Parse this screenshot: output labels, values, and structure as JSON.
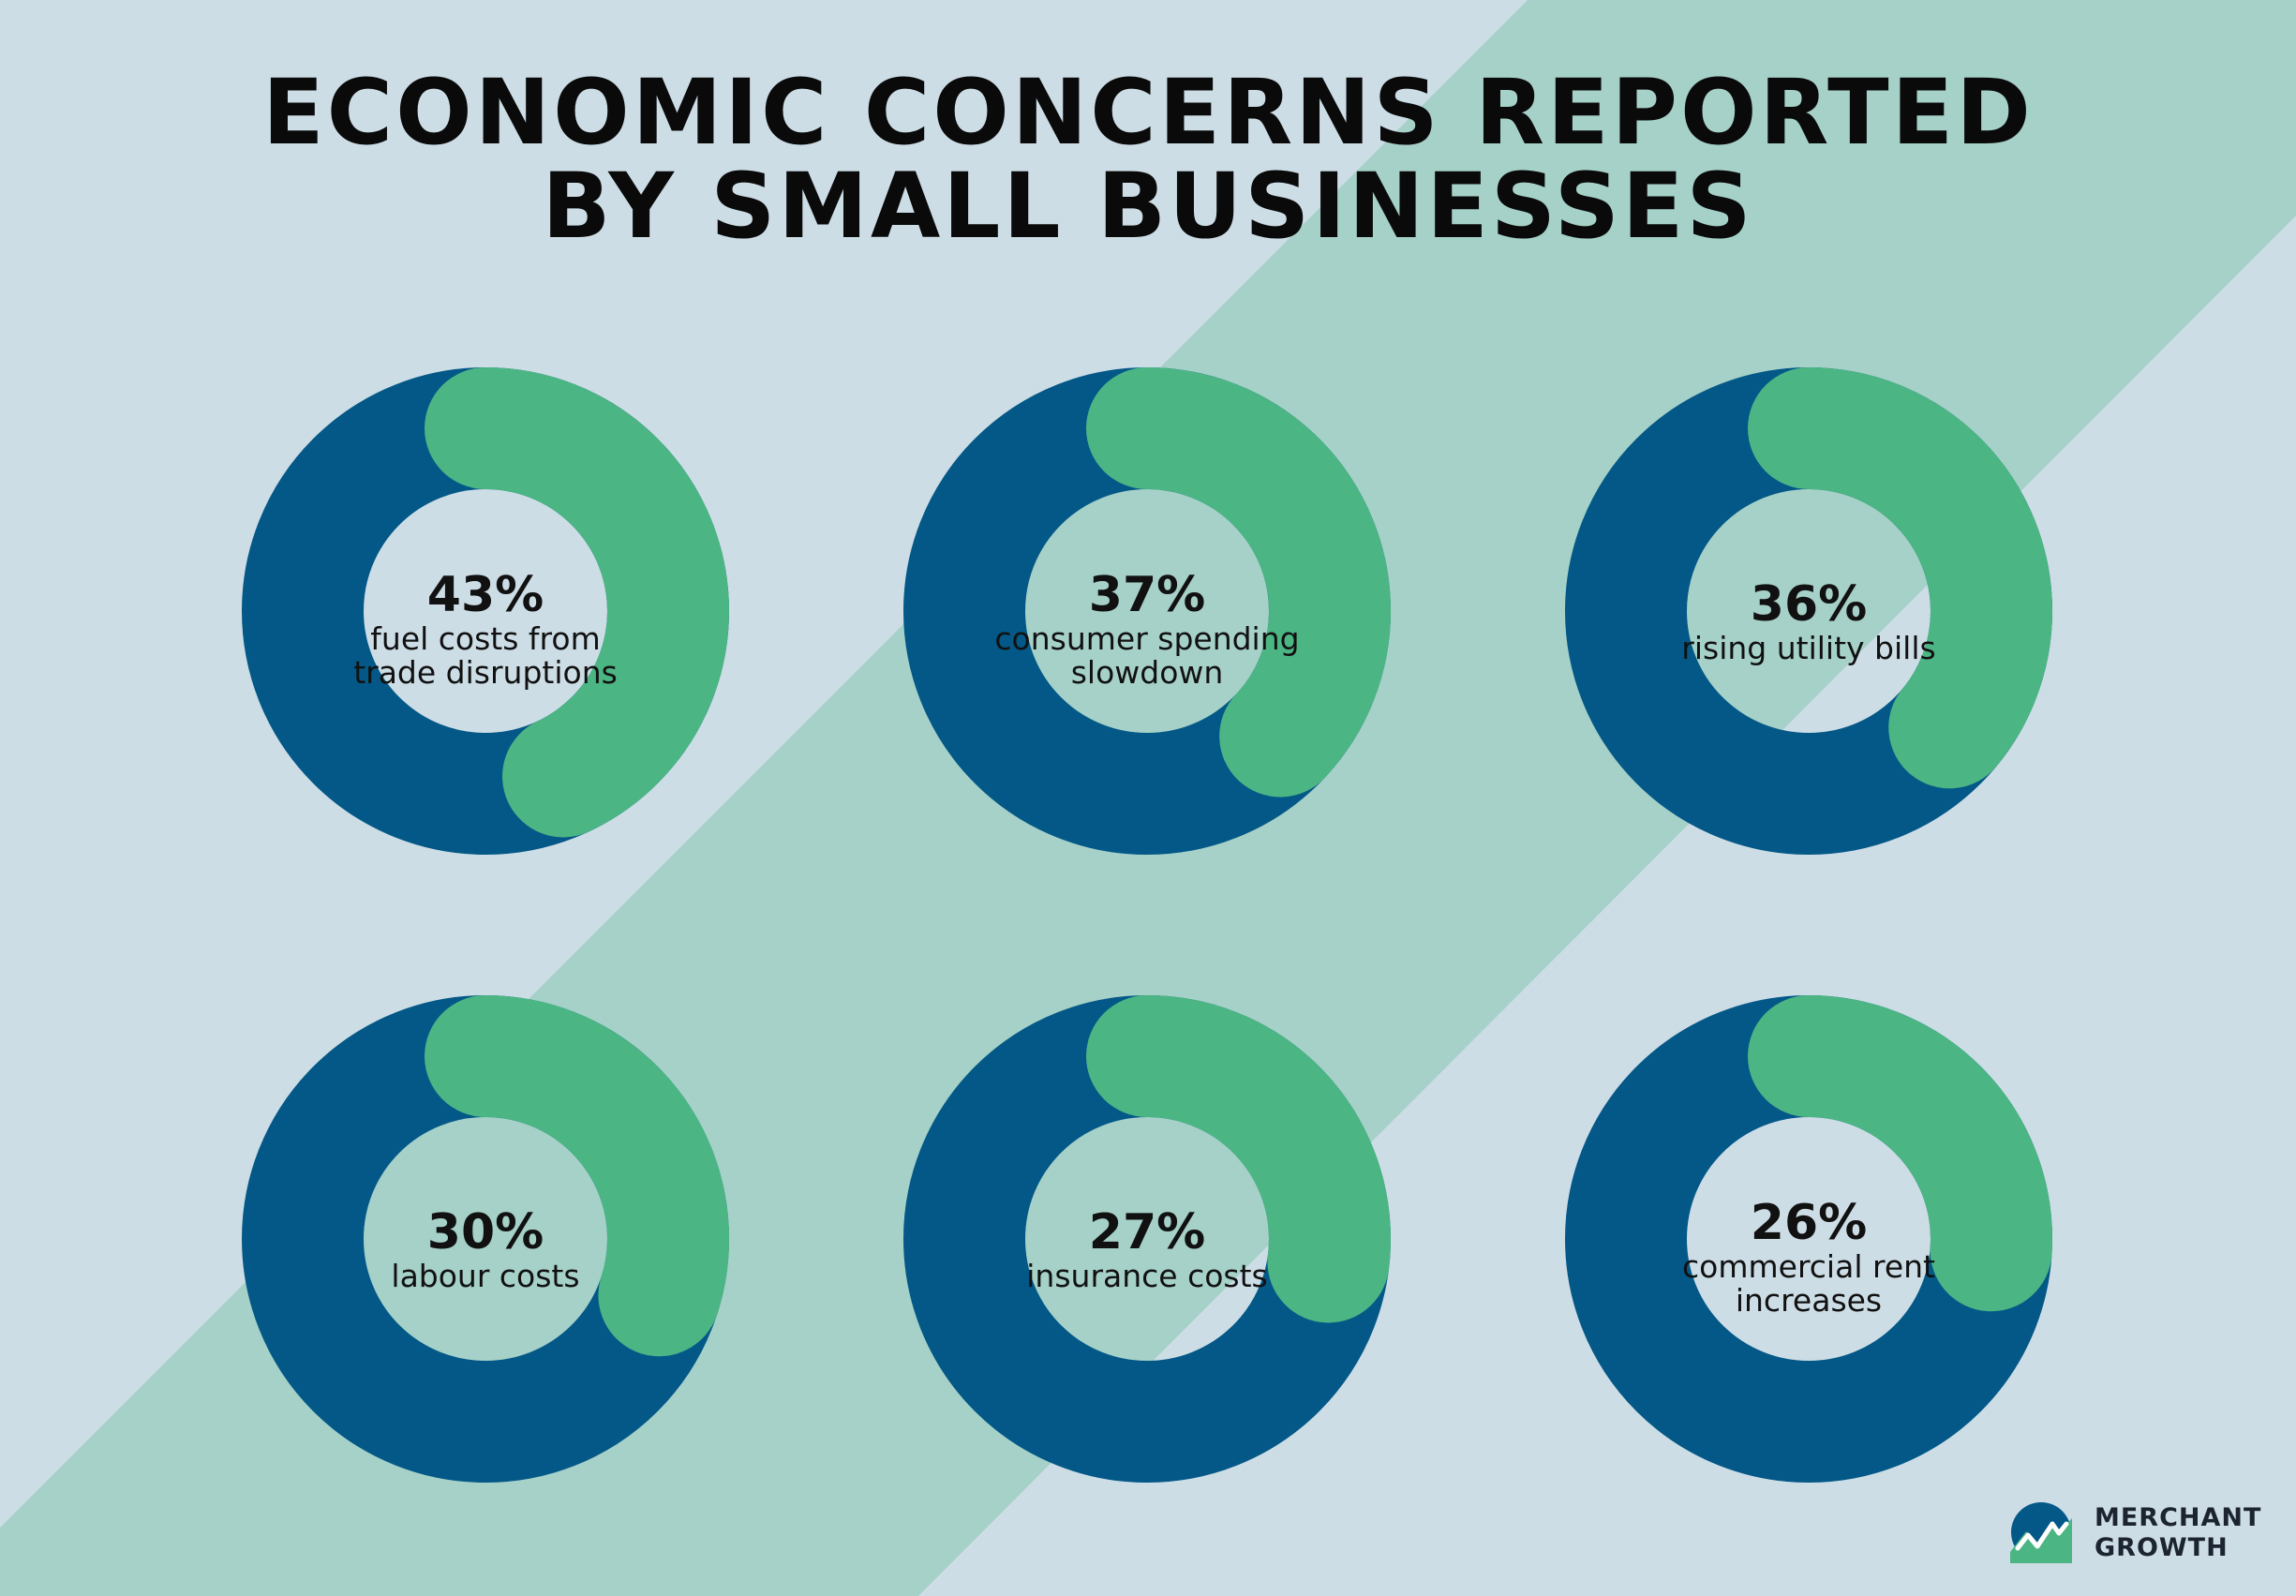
{
  "title": {
    "line1": "ECONOMIC CONCERNS REPORTED",
    "line2": "BY SMALL BUSINESSES"
  },
  "colors": {
    "background": "#cddde6",
    "diagonal_band": "#a6d1c8",
    "ring": "#035887",
    "share": "#4cb584",
    "text": "#0a0a0a"
  },
  "chart_data": {
    "type": "donut",
    "unit": "%",
    "items": [
      {
        "label": "fuel costs from trade disruptions",
        "label_lines": [
          "fuel costs from",
          "trade disruptions"
        ],
        "value": 43,
        "display": "43%"
      },
      {
        "label": "consumer spending slowdown",
        "label_lines": [
          "consumer spending",
          "slowdown"
        ],
        "value": 37,
        "display": "37%"
      },
      {
        "label": "rising utility bills",
        "label_lines": [
          "rising utility bills"
        ],
        "value": 36,
        "display": "36%"
      },
      {
        "label": "labour costs",
        "label_lines": [
          "labour costs"
        ],
        "value": 30,
        "display": "30%"
      },
      {
        "label": "insurance costs",
        "label_lines": [
          "insurance costs"
        ],
        "value": 27,
        "display": "27%"
      },
      {
        "label": "commercial rent increases",
        "label_lines": [
          "commercial rent",
          "increases"
        ],
        "value": 26,
        "display": "26%"
      }
    ]
  },
  "logo": {
    "line1": "MERCHANT",
    "line2": "GROWTH"
  }
}
